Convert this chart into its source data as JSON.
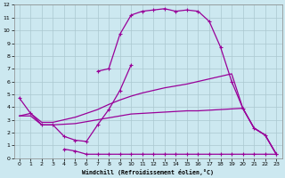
{
  "xlabel": "Windchill (Refroidissement éolien,°C)",
  "bg_color": "#cce8f0",
  "line_color": "#990099",
  "grid_color": "#aac8d0",
  "xlim": [
    -0.5,
    23.5
  ],
  "ylim": [
    0,
    12
  ],
  "xticks": [
    0,
    1,
    2,
    3,
    4,
    5,
    6,
    7,
    8,
    9,
    10,
    11,
    12,
    13,
    14,
    15,
    16,
    17,
    18,
    19,
    20,
    21,
    22,
    23
  ],
  "yticks": [
    0,
    1,
    2,
    3,
    4,
    5,
    6,
    7,
    8,
    9,
    10,
    11,
    12
  ],
  "line_zigzag_x": [
    0,
    1,
    2,
    3,
    4,
    5,
    6,
    7,
    8,
    9,
    10
  ],
  "line_zigzag_y": [
    4.7,
    3.5,
    2.6,
    2.6,
    1.7,
    1.4,
    1.3,
    2.6,
    3.8,
    5.3,
    7.3
  ],
  "line_flat_x": [
    4,
    5,
    6,
    7,
    8,
    9,
    10,
    11,
    12,
    13,
    14,
    15,
    16,
    17,
    18,
    19,
    20,
    21,
    22,
    23
  ],
  "line_flat_y": [
    0.7,
    0.55,
    0.3,
    0.3,
    0.3,
    0.3,
    0.3,
    0.3,
    0.3,
    0.3,
    0.3,
    0.3,
    0.3,
    0.3,
    0.3,
    0.3,
    0.3,
    0.3,
    0.3,
    0.3
  ],
  "line_upper_x": [
    0,
    1,
    2,
    3,
    4,
    5,
    6,
    7,
    8,
    9,
    10,
    11,
    12,
    13,
    14,
    15,
    16,
    17,
    18,
    19,
    20,
    21,
    22,
    23
  ],
  "line_upper_y": [
    3.3,
    3.5,
    2.8,
    2.8,
    3.0,
    3.2,
    3.5,
    3.8,
    4.2,
    4.55,
    4.85,
    5.1,
    5.3,
    5.5,
    5.65,
    5.8,
    6.0,
    6.2,
    6.4,
    6.6,
    3.9,
    2.35,
    1.8,
    0.3
  ],
  "line_lower_x": [
    0,
    1,
    2,
    3,
    4,
    5,
    6,
    7,
    8,
    9,
    10,
    11,
    12,
    13,
    14,
    15,
    16,
    17,
    18,
    19,
    20,
    21,
    22,
    23
  ],
  "line_lower_y": [
    3.3,
    3.3,
    2.6,
    2.6,
    2.65,
    2.7,
    2.85,
    3.0,
    3.15,
    3.3,
    3.45,
    3.5,
    3.55,
    3.6,
    3.65,
    3.7,
    3.7,
    3.75,
    3.8,
    3.85,
    3.9,
    2.35,
    1.8,
    0.3
  ],
  "line_peak_x": [
    7,
    8,
    9,
    10,
    11,
    12,
    13,
    14,
    15,
    16,
    17,
    18,
    19,
    20,
    21,
    22,
    23
  ],
  "line_peak_y": [
    6.8,
    7.0,
    9.7,
    11.2,
    11.5,
    11.6,
    11.7,
    11.5,
    11.6,
    11.5,
    10.7,
    8.7,
    6.0,
    3.9,
    2.35,
    1.8,
    0.3
  ]
}
